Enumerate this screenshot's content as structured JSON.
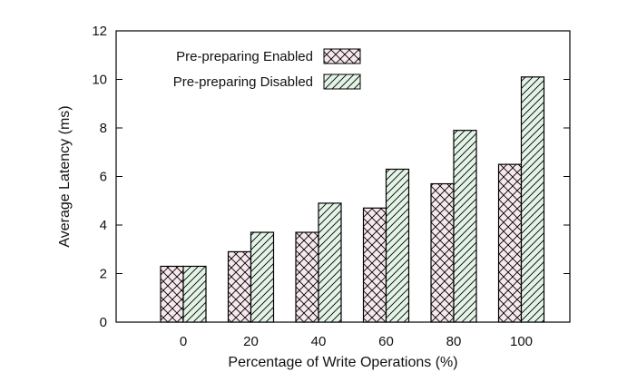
{
  "chart_data": {
    "type": "bar",
    "title": "",
    "xlabel": "Percentage of Write Operations (%)",
    "ylabel": "Average Latency (ms)",
    "categories": [
      "0",
      "20",
      "40",
      "60",
      "80",
      "100"
    ],
    "ylim": [
      0,
      12
    ],
    "yticks": [
      0,
      2,
      4,
      6,
      8,
      10,
      12
    ],
    "grid": false,
    "legend_position": "top-left",
    "series": [
      {
        "name": "Pre-preparing Enabled",
        "values": [
          2.3,
          2.9,
          3.7,
          4.7,
          5.7,
          6.5
        ],
        "fill": "#f7e8ee",
        "pattern": "crosshatch",
        "hatch_color": "#000000"
      },
      {
        "name": "Pre-preparing Disabled",
        "values": [
          2.3,
          3.7,
          4.9,
          6.3,
          7.9,
          10.1
        ],
        "fill": "#e3f4e7",
        "pattern": "diagonal",
        "hatch_color": "#000000"
      }
    ]
  }
}
